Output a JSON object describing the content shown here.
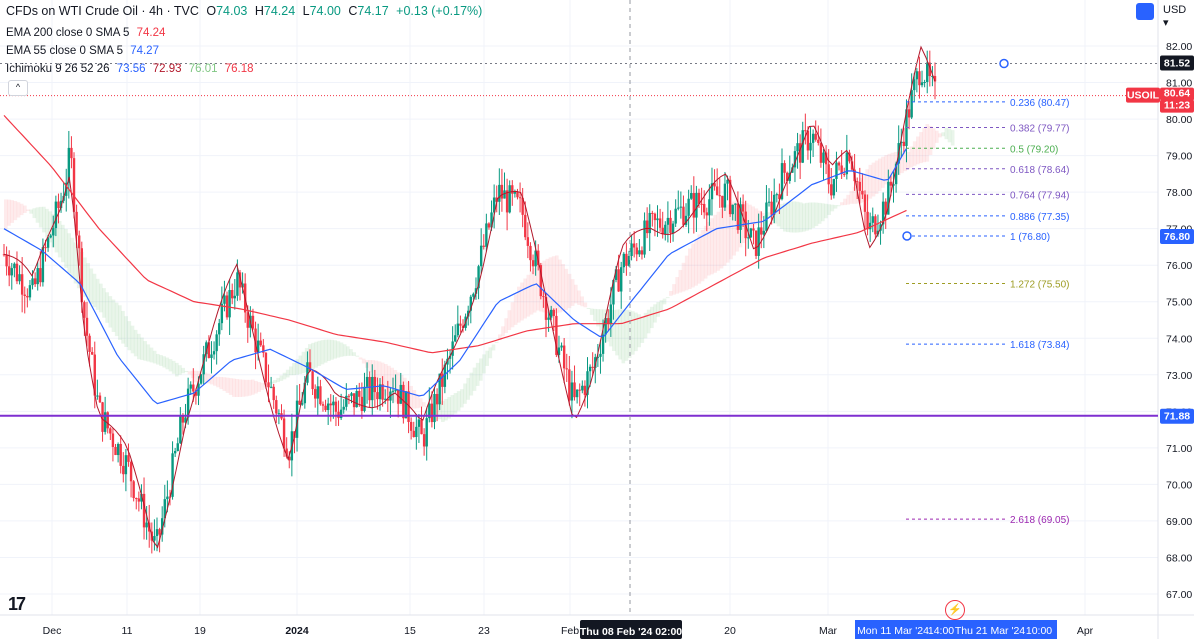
{
  "header": {
    "title": "CFDs on WTI Crude Oil · 4h · TVC",
    "o_label": "O",
    "o": "74.03",
    "h_label": "H",
    "h": "74.24",
    "l_label": "L",
    "l": "74.00",
    "c_label": "C",
    "c": "74.17",
    "chg": "+0.13 (+0.17%)"
  },
  "indicators": [
    {
      "label": "EMA 200 close 0 SMA 5",
      "values": [
        "74.24"
      ],
      "colors": [
        "#f23645"
      ]
    },
    {
      "label": "EMA 55 close 0 SMA 5",
      "values": [
        "74.27"
      ],
      "colors": [
        "#2962ff"
      ]
    },
    {
      "label": "Ichimoku 9 26 52 26",
      "values": [
        "73.56",
        "72.93",
        "76.01",
        "76.18"
      ],
      "colors": [
        "#2962ff",
        "#b2182b",
        "#81c784",
        "#f23645"
      ]
    }
  ],
  "toolbar": {
    "currency": "USD",
    "collapse_icon": "chevron-up-icon",
    "calendar_icon": "calendar-icon",
    "logo": "17",
    "bolt_icon": "lightning-icon"
  },
  "chart_data": {
    "type": "candlestick",
    "symbol": "USOIL",
    "yaxis_ticks": [
      82.0,
      81.0,
      80.0,
      79.0,
      78.0,
      77.0,
      76.0,
      75.0,
      74.0,
      73.0,
      72.0,
      71.0,
      70.0,
      69.0,
      68.0,
      67.0
    ],
    "ylim": [
      66.5,
      82.6
    ],
    "xaxis_ticks": [
      "Dec",
      "11",
      "19",
      "2024",
      "15",
      "23",
      "Feb",
      "20",
      "Mar",
      "Apr"
    ],
    "price_labels": [
      {
        "text": "81.52",
        "bg": "#131722"
      },
      {
        "text": "USOIL",
        "bg": "#f23645"
      },
      {
        "text": "80.64",
        "bg": "#f23645"
      },
      {
        "text": "11:23",
        "bg": "#f23645"
      },
      {
        "text": "76.80",
        "bg": "#2962ff"
      },
      {
        "text": "71.88",
        "bg": "#2962ff"
      }
    ],
    "horizontal_line": 71.88,
    "fib_levels": [
      {
        "label": "0.236 (80.47)",
        "price": 80.47,
        "color": "#2962ff"
      },
      {
        "label": "0.382 (79.77)",
        "price": 79.77,
        "color": "#7e57c2"
      },
      {
        "label": "0.5 (79.20)",
        "price": 79.2,
        "color": "#4caf50"
      },
      {
        "label": "0.618 (78.64)",
        "price": 78.64,
        "color": "#7e57c2"
      },
      {
        "label": "0.764 (77.94)",
        "price": 77.94,
        "color": "#7e57c2"
      },
      {
        "label": "0.886 (77.35)",
        "price": 77.35,
        "color": "#2962ff"
      },
      {
        "label": "1 (76.80)",
        "price": 76.8,
        "color": "#2962ff"
      },
      {
        "label": "1.272 (75.50)",
        "price": 75.5,
        "color": "#9e9d24"
      },
      {
        "label": "1.618 (73.84)",
        "price": 73.84,
        "color": "#2962ff"
      },
      {
        "label": "2.618 (69.05)",
        "price": 69.05,
        "color": "#9c27b0"
      }
    ],
    "crosshair_label": "Thu 08 Feb '24  02:00",
    "range_labels": [
      "Mon 11 Mar '24",
      "14:00",
      "Thu 21 Mar '24",
      "10:00"
    ],
    "last_price": 80.64,
    "high_marker": 81.52,
    "low_marker": 76.8,
    "close_trend": [
      {
        "t": 0,
        "p": 76.3
      },
      {
        "t": 0.03,
        "p": 75.2
      },
      {
        "t": 0.06,
        "p": 77.8
      },
      {
        "t": 0.07,
        "p": 79.0
      },
      {
        "t": 0.085,
        "p": 74.5
      },
      {
        "t": 0.1,
        "p": 72.0
      },
      {
        "t": 0.13,
        "p": 70.5
      },
      {
        "t": 0.16,
        "p": 68.2
      },
      {
        "t": 0.19,
        "p": 72.0
      },
      {
        "t": 0.22,
        "p": 74.0
      },
      {
        "t": 0.245,
        "p": 75.6
      },
      {
        "t": 0.27,
        "p": 73.5
      },
      {
        "t": 0.3,
        "p": 71.0
      },
      {
        "t": 0.32,
        "p": 73.0
      },
      {
        "t": 0.35,
        "p": 72.0
      },
      {
        "t": 0.38,
        "p": 72.5
      },
      {
        "t": 0.41,
        "p": 72.8
      },
      {
        "t": 0.44,
        "p": 71.2
      },
      {
        "t": 0.47,
        "p": 73.5
      },
      {
        "t": 0.5,
        "p": 76.0
      },
      {
        "t": 0.52,
        "p": 78.0
      },
      {
        "t": 0.545,
        "p": 77.5
      },
      {
        "t": 0.57,
        "p": 75.0
      },
      {
        "t": 0.6,
        "p": 72.2
      },
      {
        "t": 0.62,
        "p": 73.2
      },
      {
        "t": 0.65,
        "p": 76.0
      },
      {
        "t": 0.68,
        "p": 77.0
      },
      {
        "t": 0.72,
        "p": 77.6
      },
      {
        "t": 0.76,
        "p": 78.0
      },
      {
        "t": 0.79,
        "p": 76.5
      },
      {
        "t": 0.82,
        "p": 78.5
      },
      {
        "t": 0.85,
        "p": 79.6
      },
      {
        "t": 0.87,
        "p": 78.2
      },
      {
        "t": 0.89,
        "p": 79.2
      },
      {
        "t": 0.91,
        "p": 76.9
      },
      {
        "t": 0.93,
        "p": 77.8
      },
      {
        "t": 0.95,
        "p": 80.0
      },
      {
        "t": 0.965,
        "p": 81.5
      },
      {
        "t": 0.98,
        "p": 80.64
      }
    ],
    "ema200_trend": [
      {
        "t": 0,
        "p": 80.1
      },
      {
        "t": 0.05,
        "p": 78.7
      },
      {
        "t": 0.1,
        "p": 77.0
      },
      {
        "t": 0.15,
        "p": 75.6
      },
      {
        "t": 0.2,
        "p": 75.0
      },
      {
        "t": 0.25,
        "p": 74.8
      },
      {
        "t": 0.3,
        "p": 74.5
      },
      {
        "t": 0.35,
        "p": 74.1
      },
      {
        "t": 0.4,
        "p": 73.9
      },
      {
        "t": 0.45,
        "p": 73.6
      },
      {
        "t": 0.5,
        "p": 73.8
      },
      {
        "t": 0.55,
        "p": 74.2
      },
      {
        "t": 0.6,
        "p": 74.4
      },
      {
        "t": 0.65,
        "p": 74.4
      },
      {
        "t": 0.7,
        "p": 74.8
      },
      {
        "t": 0.75,
        "p": 75.5
      },
      {
        "t": 0.8,
        "p": 76.2
      },
      {
        "t": 0.85,
        "p": 76.6
      },
      {
        "t": 0.9,
        "p": 76.9
      },
      {
        "t": 0.95,
        "p": 77.5
      }
    ],
    "ema55_trend": [
      {
        "t": 0,
        "p": 77.0
      },
      {
        "t": 0.04,
        "p": 76.4
      },
      {
        "t": 0.08,
        "p": 75.5
      },
      {
        "t": 0.12,
        "p": 73.5
      },
      {
        "t": 0.16,
        "p": 72.2
      },
      {
        "t": 0.2,
        "p": 72.5
      },
      {
        "t": 0.24,
        "p": 73.4
      },
      {
        "t": 0.28,
        "p": 73.7
      },
      {
        "t": 0.32,
        "p": 73.2
      },
      {
        "t": 0.36,
        "p": 72.6
      },
      {
        "t": 0.4,
        "p": 72.7
      },
      {
        "t": 0.44,
        "p": 72.4
      },
      {
        "t": 0.48,
        "p": 73.4
      },
      {
        "t": 0.52,
        "p": 75.0
      },
      {
        "t": 0.56,
        "p": 75.5
      },
      {
        "t": 0.6,
        "p": 74.5
      },
      {
        "t": 0.63,
        "p": 74.0
      },
      {
        "t": 0.66,
        "p": 75.0
      },
      {
        "t": 0.7,
        "p": 76.3
      },
      {
        "t": 0.75,
        "p": 77.0
      },
      {
        "t": 0.8,
        "p": 77.2
      },
      {
        "t": 0.85,
        "p": 78.2
      },
      {
        "t": 0.89,
        "p": 78.6
      },
      {
        "t": 0.93,
        "p": 78.3
      },
      {
        "t": 0.95,
        "p": 79.2
      }
    ]
  }
}
